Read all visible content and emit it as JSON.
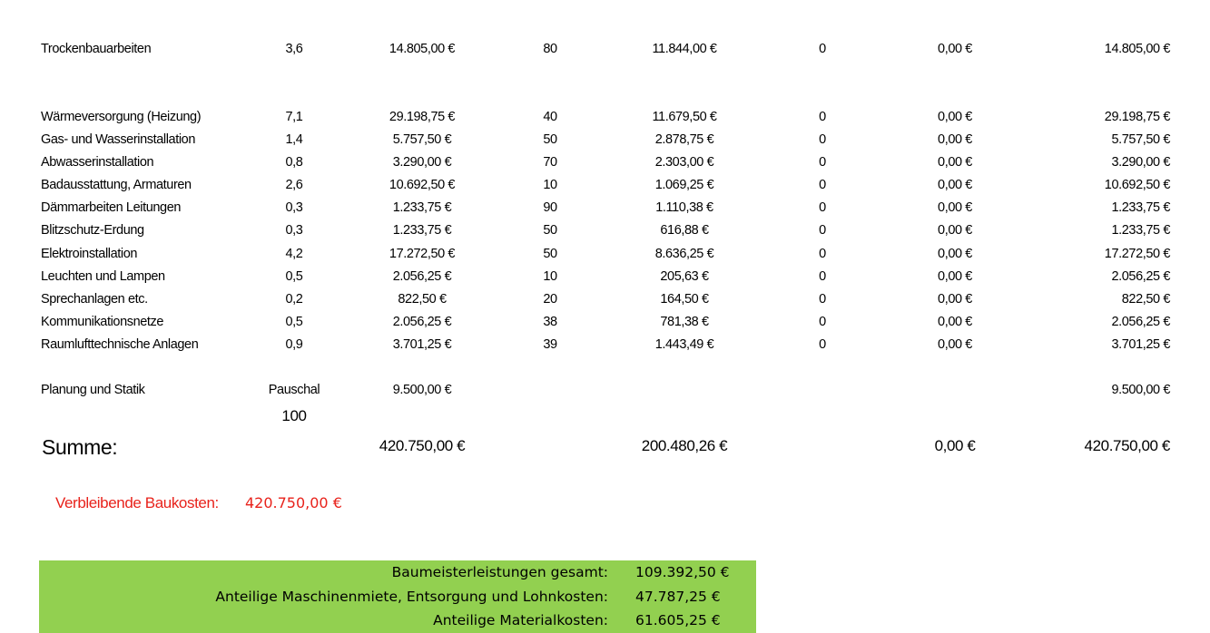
{
  "table": {
    "rows": [
      [
        "Trockenbauarbeiten",
        "3,6",
        "14.805,00 €",
        "80",
        "11.844,00 €",
        "0",
        "0,00 €",
        "14.805,00 €"
      ],
      [
        "Wärmeversorgung (Heizung)",
        "7,1",
        "29.198,75 €",
        "40",
        "11.679,50 €",
        "0",
        "0,00 €",
        "29.198,75 €"
      ],
      [
        "Gas- und Wasserinstallation",
        "1,4",
        "5.757,50 €",
        "50",
        "2.878,75 €",
        "0",
        "0,00 €",
        "5.757,50 €"
      ],
      [
        "Abwasserinstallation",
        "0,8",
        "3.290,00 €",
        "70",
        "2.303,00 €",
        "0",
        "0,00 €",
        "3.290,00 €"
      ],
      [
        "Badausstattung, Armaturen",
        "2,6",
        "10.692,50 €",
        "10",
        "1.069,25 €",
        "0",
        "0,00 €",
        "10.692,50 €"
      ],
      [
        "Dämmarbeiten Leitungen",
        "0,3",
        "1.233,75 €",
        "90",
        "1.110,38 €",
        "0",
        "0,00 €",
        "1.233,75 €"
      ],
      [
        "Blitzschutz-Erdung",
        "0,3",
        "1.233,75 €",
        "50",
        "616,88 €",
        "0",
        "0,00 €",
        "1.233,75 €"
      ],
      [
        "Elektroinstallation",
        "4,2",
        "17.272,50 €",
        "50",
        "8.636,25 €",
        "0",
        "0,00 €",
        "17.272,50 €"
      ],
      [
        "Leuchten und Lampen",
        "0,5",
        "2.056,25 €",
        "10",
        "205,63 €",
        "0",
        "0,00 €",
        "2.056,25 €"
      ],
      [
        "Sprechanlagen etc.",
        "0,2",
        "822,50 €",
        "20",
        "164,50 €",
        "0",
        "0,00 €",
        "822,50 €"
      ],
      [
        "Kommunikationsnetze",
        "0,5",
        "2.056,25 €",
        "38",
        "781,38 €",
        "0",
        "0,00 €",
        "2.056,25 €"
      ],
      [
        "Raumlufttechnische Anlagen",
        "0,9",
        "3.701,25 €",
        "39",
        "1.443,49 €",
        "0",
        "0,00 €",
        "3.701,25 €"
      ],
      [
        "Planung und Statik",
        "Pauschal",
        "9.500,00 €",
        null,
        null,
        null,
        null,
        "9.500,00 €"
      ],
      [
        null,
        "100",
        null,
        null,
        null,
        null,
        null,
        null
      ],
      [
        "Summe:",
        null,
        "420.750,00 €",
        null,
        "200.480,26 €",
        null,
        "0,00 €",
        "420.750,00 €"
      ]
    ]
  },
  "remaining": {
    "label": "Verbleibende Baukosten:",
    "value": "420.750,00 €"
  },
  "summary": {
    "rows": [
      [
        "Baumeisterleistungen gesamt:",
        "109.392,50 €"
      ],
      [
        "Anteilige Maschinenmiete, Entsorgung und Lohnkosten:",
        "47.787,25 €"
      ],
      [
        "Anteilige Materialkosten:",
        "61.605,25 €"
      ]
    ]
  }
}
